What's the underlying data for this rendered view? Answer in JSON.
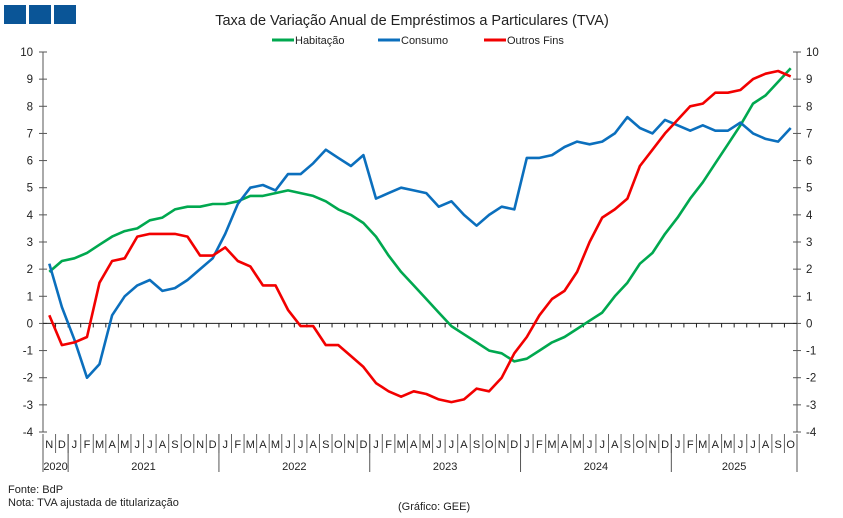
{
  "logo": {
    "color": "#0a5597"
  },
  "chart_data": {
    "type": "line",
    "title": "Taxa de Variação Anual de Empréstimos a Particulares (TVA)",
    "month_labels": [
      "N",
      "D",
      "J",
      "F",
      "M",
      "A",
      "M",
      "J",
      "J",
      "A",
      "S",
      "O",
      "N",
      "D",
      "J",
      "F",
      "M",
      "A",
      "M",
      "J",
      "J",
      "A",
      "S",
      "O",
      "N",
      "D",
      "J",
      "F",
      "M",
      "A",
      "M",
      "J",
      "J",
      "A",
      "S",
      "O",
      "N",
      "D",
      "J",
      "F",
      "M",
      "A",
      "M",
      "J",
      "J",
      "A",
      "S",
      "O",
      "N",
      "D",
      "J",
      "F",
      "M",
      "A",
      "M",
      "J",
      "J",
      "A",
      "S",
      "O"
    ],
    "year_labels": [
      {
        "label": "2020",
        "months": 2
      },
      {
        "label": "2021",
        "months": 12
      },
      {
        "label": "2022",
        "months": 12
      },
      {
        "label": "2023",
        "months": 12
      },
      {
        "label": "2024",
        "months": 12
      },
      {
        "label": "2025",
        "months": 10
      }
    ],
    "ylim": [
      -4,
      10
    ],
    "yticks": [
      -4,
      -3,
      -2,
      -1,
      0,
      1,
      2,
      3,
      4,
      5,
      6,
      7,
      8,
      9,
      10
    ],
    "grid": false,
    "legend": "top",
    "series": [
      {
        "name": "Habitação",
        "color": "#00a84f",
        "values": [
          1.9,
          2.3,
          2.4,
          2.6,
          2.9,
          3.2,
          3.4,
          3.5,
          3.8,
          3.9,
          4.2,
          4.3,
          4.3,
          4.4,
          4.4,
          4.5,
          4.7,
          4.7,
          4.8,
          4.9,
          4.8,
          4.7,
          4.5,
          4.2,
          4.0,
          3.7,
          3.2,
          2.5,
          1.9,
          1.4,
          0.9,
          0.4,
          -0.1,
          -0.4,
          -0.7,
          -1.0,
          -1.1,
          -1.4,
          -1.3,
          -1.0,
          -0.7,
          -0.5,
          -0.2,
          0.1,
          0.4,
          1.0,
          1.5,
          2.2,
          2.6,
          3.3,
          3.9,
          4.6,
          5.2,
          5.9,
          6.6,
          7.3,
          8.1,
          8.4,
          8.9,
          9.4
        ]
      },
      {
        "name": "Consumo",
        "color": "#0b6fbd",
        "values": [
          2.2,
          0.6,
          -0.6,
          -2.0,
          -1.5,
          0.3,
          1.0,
          1.4,
          1.6,
          1.2,
          1.3,
          1.6,
          2.0,
          2.4,
          3.3,
          4.4,
          5.0,
          5.1,
          4.9,
          5.5,
          5.5,
          5.9,
          6.4,
          6.1,
          5.8,
          6.2,
          4.6,
          4.8,
          5.0,
          4.9,
          4.8,
          4.3,
          4.5,
          4.0,
          3.6,
          4.0,
          4.3,
          4.2,
          6.1,
          6.1,
          6.2,
          6.5,
          6.7,
          6.6,
          6.7,
          7.0,
          7.6,
          7.2,
          7.0,
          7.5,
          7.3,
          7.1,
          7.3,
          7.1,
          7.1,
          7.4,
          7.0,
          6.8,
          6.7,
          7.2
        ]
      },
      {
        "name": "Outros Fins",
        "color": "#f20000",
        "values": [
          0.3,
          -0.8,
          -0.7,
          -0.5,
          1.5,
          2.3,
          2.4,
          3.2,
          3.3,
          3.3,
          3.3,
          3.2,
          2.5,
          2.5,
          2.8,
          2.3,
          2.1,
          1.4,
          1.4,
          0.5,
          -0.1,
          -0.1,
          -0.8,
          -0.8,
          -1.2,
          -1.6,
          -2.2,
          -2.5,
          -2.7,
          -2.5,
          -2.6,
          -2.8,
          -2.9,
          -2.8,
          -2.4,
          -2.5,
          -2.0,
          -1.1,
          -0.5,
          0.3,
          0.9,
          1.2,
          1.9,
          3.0,
          3.9,
          4.2,
          4.6,
          5.8,
          6.4,
          7.0,
          7.5,
          8.0,
          8.1,
          8.5,
          8.5,
          8.6,
          9.0,
          9.2,
          9.3,
          9.1
        ]
      }
    ]
  },
  "footer": {
    "source": "Fonte: BdP",
    "note": "Nota: TVA ajustada de titularização",
    "credit": "(Gráfico: GEE)"
  }
}
